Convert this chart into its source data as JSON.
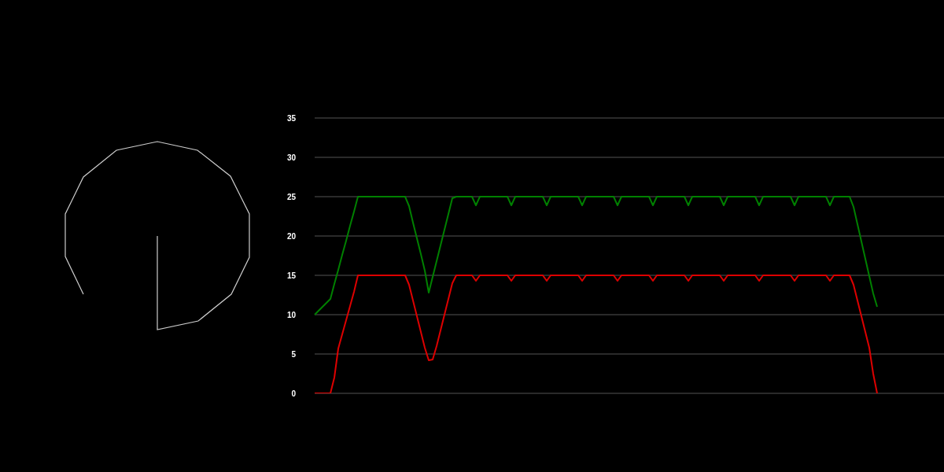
{
  "chart_data": {
    "type": "line",
    "categories": [
      null,
      null,
      null,
      null,
      null,
      null,
      null,
      null,
      null,
      null,
      null,
      null,
      null,
      null,
      null,
      null,
      null,
      null,
      null,
      null,
      null,
      null,
      null,
      null,
      null,
      null,
      null,
      null,
      null,
      null,
      null,
      null,
      null,
      null,
      null,
      null,
      null,
      null,
      null,
      null,
      null,
      null,
      null,
      null,
      null,
      null,
      null,
      null,
      null,
      null,
      null,
      null,
      null,
      null,
      null,
      null,
      null,
      null,
      null,
      null,
      null,
      null,
      null,
      null,
      null,
      null,
      null,
      null,
      null,
      null,
      null,
      null,
      null,
      null,
      null,
      null,
      null,
      null,
      null,
      null,
      null,
      null,
      null,
      null,
      null,
      null,
      null,
      null,
      null,
      null,
      null,
      null,
      null,
      null,
      null,
      null,
      null,
      null,
      null,
      null,
      null,
      null,
      null,
      null,
      null,
      null,
      null,
      null,
      null,
      null,
      null,
      null,
      null,
      null,
      null,
      null,
      null,
      null,
      null,
      null,
      null,
      null,
      null,
      null,
      null,
      null,
      null,
      null,
      null,
      null,
      null,
      null,
      null,
      null,
      null,
      null,
      null,
      null,
      null,
      null,
      null,
      null,
      null,
      null,
      null,
      null,
      null,
      null,
      null,
      null,
      null,
      null,
      null,
      null,
      null,
      null,
      null,
      null,
      null,
      null,
      null
    ],
    "series": [
      {
        "color": "#008000",
        "values": [
          10,
          10.5,
          11,
          11.5,
          12,
          13.9,
          15.7,
          17.6,
          19.4,
          21.3,
          23.1,
          25,
          25,
          25,
          25,
          25,
          25,
          25,
          25,
          25,
          25,
          25,
          25,
          25,
          23.8,
          21.7,
          19.7,
          17.7,
          15.6,
          12.8,
          14.8,
          16.8,
          18.8,
          20.8,
          22.8,
          24.8,
          25,
          25,
          25,
          25,
          25,
          23.9,
          25,
          25,
          25,
          25,
          25,
          25,
          25,
          25,
          23.9,
          25,
          25,
          25,
          25,
          25,
          25,
          25,
          25,
          23.9,
          25,
          25,
          25,
          25,
          25,
          25,
          25,
          25,
          23.9,
          25,
          25,
          25,
          25,
          25,
          25,
          25,
          25,
          23.9,
          25,
          25,
          25,
          25,
          25,
          25,
          25,
          25,
          23.9,
          25,
          25,
          25,
          25,
          25,
          25,
          25,
          25,
          23.9,
          25,
          25,
          25,
          25,
          25,
          25,
          25,
          25,
          23.9,
          25,
          25,
          25,
          25,
          25,
          25,
          25,
          25,
          23.9,
          25,
          25,
          25,
          25,
          25,
          25,
          25,
          25,
          23.9,
          25,
          25,
          25,
          25,
          25,
          25,
          25,
          25,
          23.9,
          25,
          25,
          25,
          25,
          25,
          23.7,
          21.5,
          19.3,
          17.1,
          14.9,
          12.7,
          11,
          null,
          null,
          null,
          null,
          null,
          null,
          null,
          null,
          null,
          null,
          null,
          null,
          null,
          null,
          null,
          null,
          null
        ]
      },
      {
        "color": "#dd0000",
        "values": [
          0,
          0,
          0,
          0,
          0,
          2,
          5.7,
          7.5,
          9.3,
          11.1,
          12.9,
          15,
          15,
          15,
          15,
          15,
          15,
          15,
          15,
          15,
          15,
          15,
          15,
          15,
          13.8,
          11.8,
          9.8,
          7.8,
          5.8,
          4.2,
          4.3,
          6,
          8,
          10,
          12,
          14,
          15,
          15,
          15,
          15,
          15,
          14.3,
          15,
          15,
          15,
          15,
          15,
          15,
          15,
          15,
          14.3,
          15,
          15,
          15,
          15,
          15,
          15,
          15,
          15,
          14.3,
          15,
          15,
          15,
          15,
          15,
          15,
          15,
          15,
          14.3,
          15,
          15,
          15,
          15,
          15,
          15,
          15,
          15,
          14.3,
          15,
          15,
          15,
          15,
          15,
          15,
          15,
          15,
          14.3,
          15,
          15,
          15,
          15,
          15,
          15,
          15,
          15,
          14.3,
          15,
          15,
          15,
          15,
          15,
          15,
          15,
          15,
          14.3,
          15,
          15,
          15,
          15,
          15,
          15,
          15,
          15,
          14.3,
          15,
          15,
          15,
          15,
          15,
          15,
          15,
          15,
          14.3,
          15,
          15,
          15,
          15,
          15,
          15,
          15,
          15,
          14.3,
          15,
          15,
          15,
          15,
          15,
          13.8,
          11.8,
          9.8,
          7.8,
          5.8,
          2.5,
          0,
          null,
          null,
          null,
          null,
          null,
          null,
          null,
          null,
          null,
          null,
          null,
          null,
          null,
          null,
          null,
          null,
          null
        ]
      }
    ],
    "ylim": [
      0,
      35
    ],
    "yticks": [
      0,
      5,
      10,
      15,
      20,
      25,
      30,
      35
    ],
    "grid": "y",
    "tick_labels": "y"
  }
}
